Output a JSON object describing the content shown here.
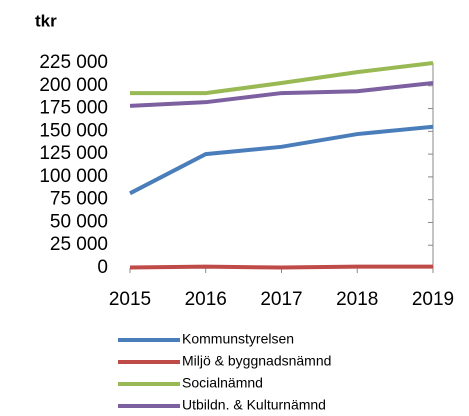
{
  "chart_data": {
    "type": "line",
    "title": "tkr",
    "categories": [
      "2015",
      "2016",
      "2017",
      "2018",
      "2019"
    ],
    "series": [
      {
        "name": "Kommunstyrelsen",
        "color": "#4a7ebb",
        "values": [
          82000,
          125000,
          133000,
          147000,
          155000
        ]
      },
      {
        "name": "Miljö & byggnadsnämnd",
        "color": "#be4b48",
        "values": [
          500,
          1500,
          500,
          1500,
          1500
        ]
      },
      {
        "name": "Socialnämnd",
        "color": "#98b954",
        "values": [
          192000,
          192000,
          203000,
          215000,
          225000
        ]
      },
      {
        "name": "Utbildn. & Kulturnämnd",
        "color": "#7d60a0",
        "values": [
          178000,
          182000,
          192000,
          194000,
          203000
        ]
      }
    ],
    "ylim": [
      0,
      225000
    ],
    "yticks": [
      0,
      {
        "value": 25000,
        "label": "25 000"
      },
      {
        "value": 50000,
        "label": "50 000"
      },
      {
        "value": 75000,
        "label": "75 000"
      },
      {
        "value": 100000,
        "label": "100 000"
      },
      {
        "value": 125000,
        "label": "125 000"
      },
      {
        "value": 150000,
        "label": "150 000"
      },
      {
        "value": 175000,
        "label": "175 000"
      },
      {
        "value": 200000,
        "label": "200 000"
      },
      {
        "value": 225000,
        "label": "225 000"
      }
    ],
    "grid": false,
    "legend": "bottom"
  }
}
